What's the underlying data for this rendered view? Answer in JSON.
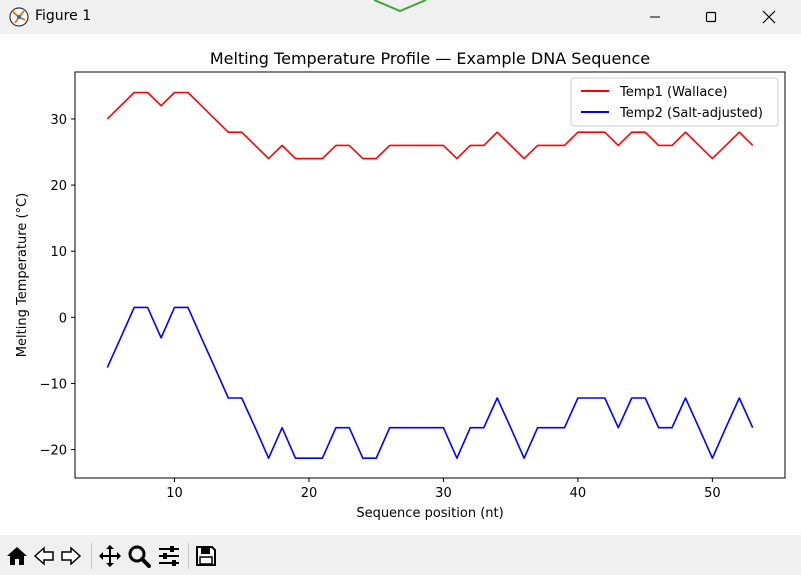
{
  "window": {
    "title": "Figure 1",
    "icons": {
      "app": "matplotlib-icon",
      "minimize": "minimize-icon",
      "maximize": "maximize-icon",
      "close": "close-icon"
    }
  },
  "toolbar": {
    "buttons": [
      "home-icon",
      "back-arrow-icon",
      "forward-arrow-icon",
      "pan-icon",
      "zoom-icon",
      "subplots-icon",
      "save-icon"
    ]
  },
  "chart_data": {
    "type": "line",
    "title": "Melting Temperature Profile — Example DNA Sequence",
    "xlabel": "Sequence position (nt)",
    "ylabel": "Melting Temperature (°C)",
    "xlim": [
      2.6,
      55.4
    ],
    "ylim": [
      -24.3,
      37.1
    ],
    "xticks": [
      10,
      20,
      30,
      40,
      50
    ],
    "yticks": [
      -20,
      -10,
      0,
      10,
      20,
      30
    ],
    "xtick_labels": [
      "10",
      "20",
      "30",
      "40",
      "50"
    ],
    "ytick_labels": [
      "−20",
      "−10",
      "0",
      "10",
      "20",
      "30"
    ],
    "grid": false,
    "legend_position": "upper right",
    "x": [
      5,
      6,
      7,
      8,
      9,
      10,
      11,
      12,
      13,
      14,
      15,
      16,
      17,
      18,
      19,
      20,
      21,
      22,
      23,
      24,
      25,
      26,
      27,
      28,
      29,
      30,
      31,
      32,
      33,
      34,
      35,
      36,
      37,
      38,
      39,
      40,
      41,
      42,
      43,
      44,
      45,
      46,
      47,
      48,
      49,
      50,
      51,
      52,
      53
    ],
    "series": [
      {
        "name": "Temp1 (Wallace)",
        "color": "#ff0000",
        "values": [
          30,
          32,
          34,
          34,
          32,
          34,
          34,
          32,
          30,
          28,
          28,
          26,
          24,
          26,
          24,
          24,
          24,
          26,
          26,
          24,
          24,
          26,
          26,
          26,
          26,
          26,
          24,
          26,
          26,
          28,
          26,
          24,
          26,
          26,
          26,
          28,
          28,
          28,
          26,
          28,
          28,
          26,
          26,
          28,
          26,
          24,
          26,
          28,
          26
        ]
      },
      {
        "name": "Temp2 (Salt-adjusted)",
        "color": "#0000ff",
        "values": [
          -7.6,
          -3.1,
          1.5,
          1.5,
          -3.1,
          1.5,
          1.5,
          -3.1,
          -7.6,
          -12.2,
          -12.2,
          -16.7,
          -21.3,
          -16.7,
          -21.3,
          -21.3,
          -21.3,
          -16.7,
          -16.7,
          -21.3,
          -21.3,
          -16.7,
          -16.7,
          -16.7,
          -16.7,
          -16.7,
          -21.3,
          -16.7,
          -16.7,
          -12.2,
          -16.7,
          -21.3,
          -16.7,
          -16.7,
          -16.7,
          -12.2,
          -12.2,
          -12.2,
          -16.7,
          -12.2,
          -12.2,
          -16.7,
          -16.7,
          -12.2,
          -16.7,
          -21.3,
          -16.7,
          -12.2,
          -16.7
        ]
      }
    ]
  }
}
